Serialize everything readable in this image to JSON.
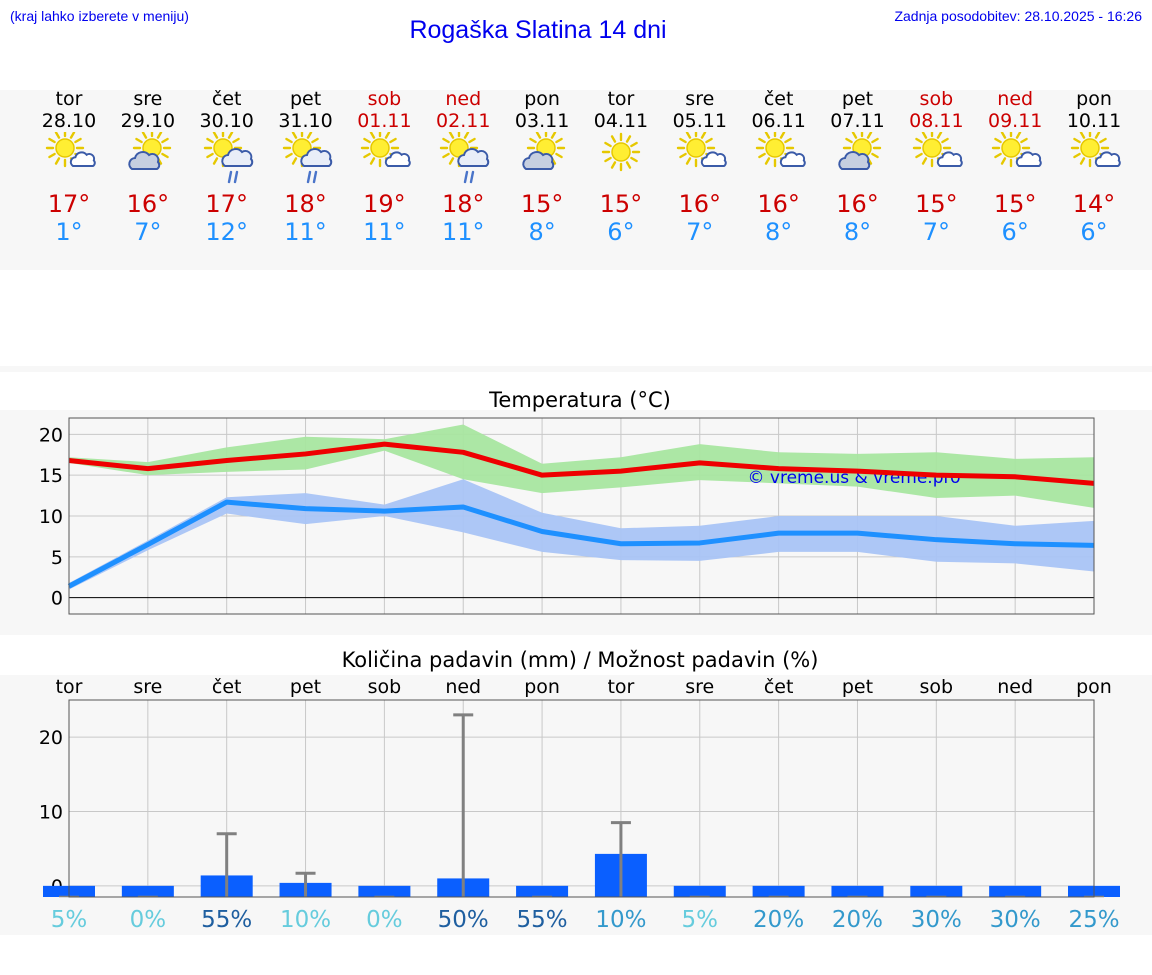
{
  "header": {
    "hint": "(kraj lahko izberete v meniju)",
    "title": "Rogaška Slatina 14 dni",
    "updated": "Zadnja posodobitev: 28.10.2025 - 16:26"
  },
  "days": [
    {
      "name": "tor",
      "date": "28.10",
      "weekend": false,
      "icon": "sun-cloud-icon",
      "max": "17°",
      "min": "1°"
    },
    {
      "name": "sre",
      "date": "29.10",
      "weekend": false,
      "icon": "cloud-sun-icon",
      "max": "16°",
      "min": "7°"
    },
    {
      "name": "čet",
      "date": "30.10",
      "weekend": false,
      "icon": "sun-cloud-rain-icon",
      "max": "17°",
      "min": "12°"
    },
    {
      "name": "pet",
      "date": "31.10",
      "weekend": false,
      "icon": "sun-cloud-rain-icon",
      "max": "18°",
      "min": "11°"
    },
    {
      "name": "sob",
      "date": "01.11",
      "weekend": true,
      "icon": "sun-cloud-icon",
      "max": "19°",
      "min": "11°"
    },
    {
      "name": "ned",
      "date": "02.11",
      "weekend": true,
      "icon": "sun-cloud-rain-icon",
      "max": "18°",
      "min": "11°"
    },
    {
      "name": "pon",
      "date": "03.11",
      "weekend": false,
      "icon": "cloud-sun-icon",
      "max": "15°",
      "min": "8°"
    },
    {
      "name": "tor",
      "date": "04.11",
      "weekend": false,
      "icon": "sun-icon",
      "max": "15°",
      "min": "6°"
    },
    {
      "name": "sre",
      "date": "05.11",
      "weekend": false,
      "icon": "sun-cloud-icon",
      "max": "16°",
      "min": "7°"
    },
    {
      "name": "čet",
      "date": "06.11",
      "weekend": false,
      "icon": "sun-cloud-icon",
      "max": "16°",
      "min": "8°"
    },
    {
      "name": "pet",
      "date": "07.11",
      "weekend": false,
      "icon": "cloud-sun-icon",
      "max": "16°",
      "min": "8°"
    },
    {
      "name": "sob",
      "date": "08.11",
      "weekend": true,
      "icon": "sun-cloud-icon",
      "max": "15°",
      "min": "7°"
    },
    {
      "name": "ned",
      "date": "09.11",
      "weekend": true,
      "icon": "sun-cloud-icon",
      "max": "15°",
      "min": "6°"
    },
    {
      "name": "pon",
      "date": "10.11",
      "weekend": false,
      "icon": "sun-cloud-icon",
      "max": "14°",
      "min": "6°"
    }
  ],
  "colors": {
    "max_line": "#ee0000",
    "max_band": "#a8e6a0",
    "min_line": "#1e90ff",
    "min_band": "#a9c4f5",
    "bar": "#0a5fff",
    "whisker": "#808080",
    "watermark": "#0000ee"
  },
  "chart_data": [
    {
      "type": "line",
      "title": "Temperatura (°C)",
      "x": [
        "28.10",
        "29.10",
        "30.10",
        "31.10",
        "01.11",
        "02.11",
        "03.11",
        "04.11",
        "05.11",
        "06.11",
        "07.11",
        "08.11",
        "09.11",
        "10.11"
      ],
      "ylim": [
        -2,
        22
      ],
      "yticks": [
        0,
        5,
        10,
        15,
        20
      ],
      "grid": true,
      "watermark": "© vreme.us & vreme.pro",
      "series": [
        {
          "values": [
            16.8,
            15.8,
            16.8,
            17.6,
            18.8,
            17.8,
            15.0,
            15.5,
            16.5,
            15.8,
            15.5,
            15.0,
            14.8,
            14.0
          ],
          "band_low": [
            16.5,
            15.0,
            15.4,
            15.7,
            18.0,
            14.5,
            12.8,
            13.5,
            14.4,
            14.0,
            13.6,
            12.2,
            12.5,
            11.0
          ],
          "band_high": [
            17.2,
            16.6,
            18.4,
            19.7,
            19.4,
            21.2,
            16.4,
            17.2,
            18.8,
            17.8,
            17.6,
            17.8,
            17.0,
            17.2
          ]
        },
        {
          "values": [
            1.4,
            6.5,
            11.7,
            10.9,
            10.6,
            11.1,
            8.1,
            6.6,
            6.7,
            7.9,
            7.9,
            7.1,
            6.6,
            6.4
          ],
          "band_low": [
            1.0,
            5.8,
            10.3,
            9.0,
            10.0,
            8.0,
            5.6,
            4.6,
            4.5,
            5.6,
            5.6,
            4.4,
            4.2,
            3.2
          ],
          "band_high": [
            1.8,
            7.0,
            12.3,
            12.8,
            11.4,
            14.5,
            10.4,
            8.5,
            8.8,
            10.0,
            10.0,
            10.0,
            8.8,
            9.4
          ]
        }
      ]
    },
    {
      "type": "bar",
      "title": "Količina padavin (mm) / Možnost padavin (%)",
      "categories": [
        "tor",
        "sre",
        "čet",
        "pet",
        "sob",
        "ned",
        "pon",
        "tor",
        "sre",
        "čet",
        "pet",
        "sob",
        "ned",
        "pon"
      ],
      "ylim": [
        -1.5,
        25
      ],
      "yticks": [
        0,
        10,
        20
      ],
      "grid": true,
      "values": [
        0,
        0,
        1.4,
        0.4,
        0,
        1.0,
        0,
        4.3,
        0,
        0,
        0,
        0,
        0,
        0
      ],
      "whisker_max": [
        0,
        0,
        7.0,
        1.7,
        0,
        23.0,
        0,
        8.5,
        0,
        0,
        0,
        0,
        0,
        0
      ],
      "probability": [
        "5%",
        "0%",
        "55%",
        "10%",
        "0%",
        "50%",
        "55%",
        "10%",
        "5%",
        "20%",
        "20%",
        "30%",
        "30%",
        "25%"
      ],
      "probability_colors": [
        "#66ccdd",
        "#66ccdd",
        "#1f5fa0",
        "#66ccdd",
        "#66ccdd",
        "#1f5fa0",
        "#1f5fa0",
        "#3399cc",
        "#66ccdd",
        "#3399cc",
        "#3399cc",
        "#3399cc",
        "#3399cc",
        "#3399cc"
      ]
    }
  ]
}
